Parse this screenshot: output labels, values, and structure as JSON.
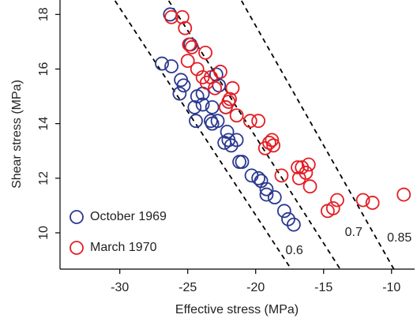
{
  "chart_data": {
    "type": "scatter",
    "x_label": "Effective stress (MPa)",
    "y_label": "Shear stress (MPa)",
    "xlim": [
      -34.4,
      -8.3
    ],
    "ylim": [
      8.67,
      18.5
    ],
    "xticks": [
      -30,
      -25,
      -20,
      -15,
      -10
    ],
    "yticks": [
      10,
      12,
      14,
      16,
      18
    ],
    "ref_lines": [
      {
        "label": "0.6",
        "x": [
          -30.35,
          -17.39
        ],
        "y": [
          18.5,
          8.67
        ]
      },
      {
        "label": "0.7",
        "x": [
          -26.4,
          -13.78
        ],
        "y": [
          18.5,
          8.67
        ]
      },
      {
        "label": "0.85",
        "x": [
          -21.04,
          -9.83
        ],
        "y": [
          18.5,
          8.67
        ]
      }
    ],
    "series": [
      {
        "name": "October 1969",
        "color": "#2b3990",
        "x": [
          -26.3,
          -24.8,
          -26.9,
          -26.2,
          -25.5,
          -25.3,
          -25.6,
          -23.9,
          -24.3,
          -22.9,
          -22.7,
          -23.2,
          -23.9,
          -24.5,
          -23.3,
          -22.8,
          -22.2,
          -23.2,
          -22.1,
          -22.0,
          -22.3,
          -21.8,
          -21.2,
          -21.0,
          -20.3,
          -19.8,
          -19.6,
          -19.2,
          -19.2,
          -18.6,
          -17.9,
          -17.6,
          -17.2,
          -21.4,
          -24.4
        ],
        "values": [
          18.0,
          16.9,
          16.2,
          16.1,
          15.6,
          15.4,
          15.1,
          15.1,
          15.0,
          15.8,
          15.4,
          14.6,
          14.7,
          14.6,
          14.1,
          14.1,
          14.6,
          14.0,
          13.7,
          13.4,
          13.3,
          13.2,
          12.6,
          12.6,
          12.1,
          12.0,
          11.9,
          11.6,
          11.4,
          11.3,
          10.8,
          10.5,
          10.3,
          13.4,
          14.1
        ]
      },
      {
        "name": "March 1970",
        "color": "#e31e24",
        "x": [
          -26.2,
          -25.4,
          -25.2,
          -24.7,
          -25.0,
          -23.7,
          -24.3,
          -23.9,
          -23.6,
          -23.3,
          -22.6,
          -23.0,
          -21.7,
          -21.9,
          -22.0,
          -22.2,
          -21.4,
          -20.4,
          -19.8,
          -19.3,
          -18.8,
          -18.7,
          -18.1,
          -16.9,
          -16.6,
          -16.8,
          -16.1,
          -16.3,
          -16.0,
          -14.7,
          -14.3,
          -14.0,
          -12.1,
          -11.4,
          -9.1,
          -24.9,
          -19.0
        ],
        "values": [
          17.9,
          17.9,
          17.5,
          16.8,
          16.3,
          16.6,
          16.0,
          15.7,
          15.5,
          15.7,
          15.9,
          15.3,
          15.3,
          14.9,
          14.8,
          14.6,
          14.3,
          14.1,
          14.1,
          13.1,
          13.4,
          13.2,
          12.1,
          12.4,
          12.4,
          12.0,
          12.5,
          12.2,
          11.7,
          10.8,
          10.9,
          11.2,
          11.2,
          11.1,
          11.4,
          16.9,
          13.3
        ]
      }
    ]
  }
}
